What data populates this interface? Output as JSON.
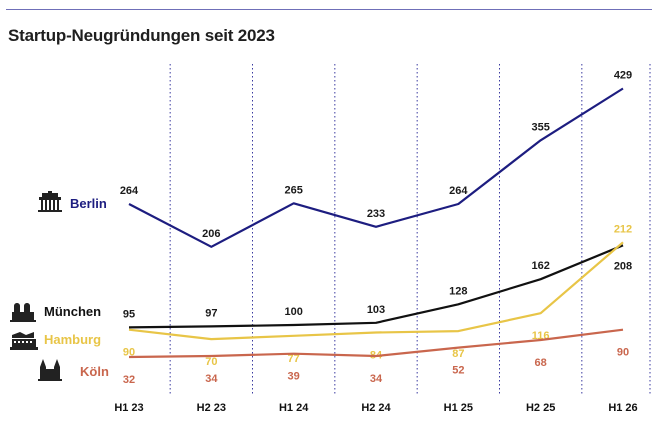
{
  "header": {
    "title": "Startup-Neugründungen seit 2023"
  },
  "chart_data": {
    "type": "line",
    "title": "Startup-Neugründungen seit 2023",
    "xlabel": "",
    "ylabel": "",
    "ylim": [
      0,
      450
    ],
    "grid": "vertical-dotted",
    "legend": "left",
    "categories": [
      "H1 23",
      "H2 23",
      "H1 24",
      "H2 24",
      "H1 25",
      "H2 25",
      "H1 26"
    ],
    "series": [
      {
        "name": "Berlin",
        "color": "#1d1d80",
        "icon": "brandenburg-gate-icon",
        "values": [
          264,
          206,
          265,
          233,
          264,
          355,
          429
        ]
      },
      {
        "name": "München",
        "color": "#111111",
        "icon": "frauenkirche-icon",
        "values": [
          95,
          97,
          100,
          103,
          128,
          162,
          208
        ]
      },
      {
        "name": "Hamburg",
        "color": "#e8c547",
        "icon": "elbphilharmonie-icon",
        "values": [
          90,
          70,
          77,
          84,
          87,
          116,
          212
        ]
      },
      {
        "name": "Köln",
        "color": "#c9664d",
        "icon": "cologne-cathedral-icon",
        "values": [
          32,
          34,
          39,
          34,
          52,
          68,
          90
        ]
      }
    ]
  }
}
